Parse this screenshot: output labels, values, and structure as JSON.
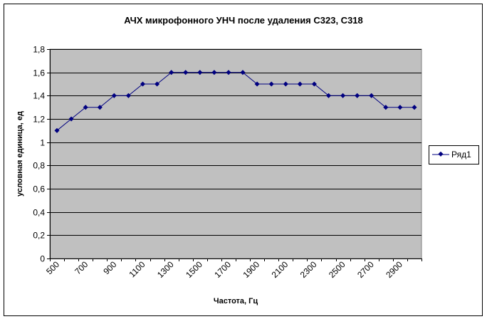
{
  "chart_data": {
    "type": "line",
    "title": "АЧХ микрофонного УНЧ после удаления C323, C318",
    "xlabel": "Частота, Гц",
    "ylabel": "условная единица, ед",
    "x": [
      500,
      600,
      700,
      800,
      900,
      1000,
      1100,
      1200,
      1300,
      1400,
      1500,
      1600,
      1700,
      1800,
      1900,
      2000,
      2100,
      2200,
      2300,
      2400,
      2500,
      2600,
      2700,
      2800,
      2900,
      3000
    ],
    "x_tick_labels": [
      "500",
      "700",
      "900",
      "1100",
      "1300",
      "1500",
      "1700",
      "1900",
      "2100",
      "2300",
      "2500",
      "2700",
      "2900"
    ],
    "y_tick_labels": [
      "0",
      "0,2",
      "0,4",
      "0,6",
      "0,8",
      "1",
      "1,2",
      "1,4",
      "1,6",
      "1,8"
    ],
    "ylim": [
      0,
      1.8
    ],
    "y_major_step": 0.2,
    "grid": true,
    "legend_position": "right",
    "series": [
      {
        "name": "Ряд1",
        "color": "#000080",
        "values": [
          1.1,
          1.2,
          1.3,
          1.3,
          1.4,
          1.4,
          1.5,
          1.5,
          1.6,
          1.6,
          1.6,
          1.6,
          1.6,
          1.6,
          1.5,
          1.5,
          1.5,
          1.5,
          1.5,
          1.4,
          1.4,
          1.4,
          1.4,
          1.3,
          1.3,
          1.3
        ]
      }
    ],
    "plot_background": "#c0c0c0",
    "border_color": "#000000"
  }
}
